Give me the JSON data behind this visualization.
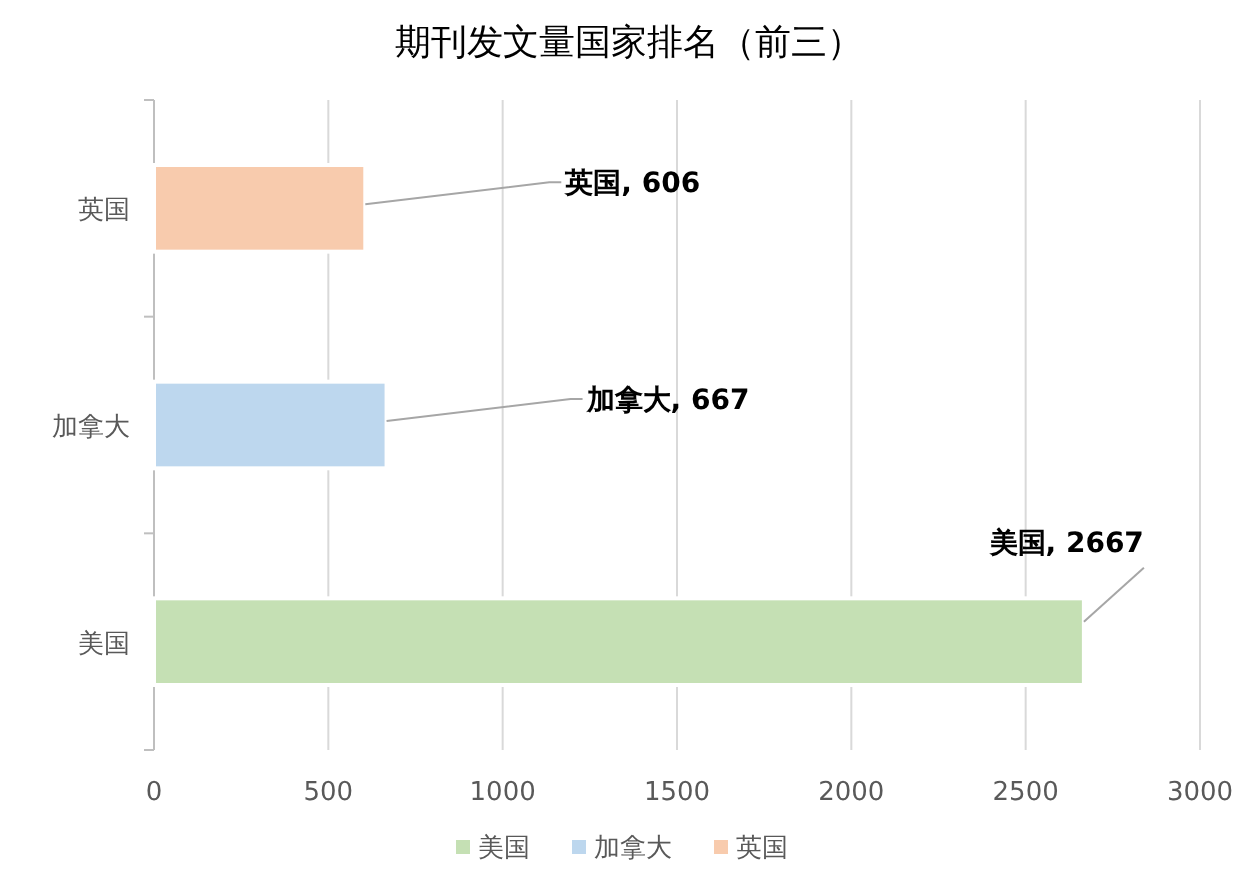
{
  "chart_data": {
    "type": "bar",
    "orientation": "horizontal",
    "stacked": true,
    "title": "期刊发文量国家排名（前三）",
    "categories": [
      "英国",
      "加拿大",
      "美国"
    ],
    "series": [
      {
        "name": "美国",
        "color": "#c5e0b4",
        "values": [
          null,
          null,
          2667
        ],
        "value_labels": [
          null,
          null,
          "美国, 2667"
        ]
      },
      {
        "name": "加拿大",
        "color": "#bdd7ee",
        "values": [
          null,
          667,
          null
        ],
        "value_labels": [
          null,
          "加拿大, 667",
          null
        ]
      },
      {
        "name": "英国",
        "color": "#f8cbad",
        "values": [
          606,
          null,
          null
        ],
        "value_labels": [
          "英国, 606",
          null,
          null
        ]
      }
    ],
    "xlim": [
      0,
      3000
    ],
    "xticks": [
      0,
      500,
      1000,
      1500,
      2000,
      2500,
      3000
    ],
    "grid": "x",
    "legend": "bottom"
  }
}
